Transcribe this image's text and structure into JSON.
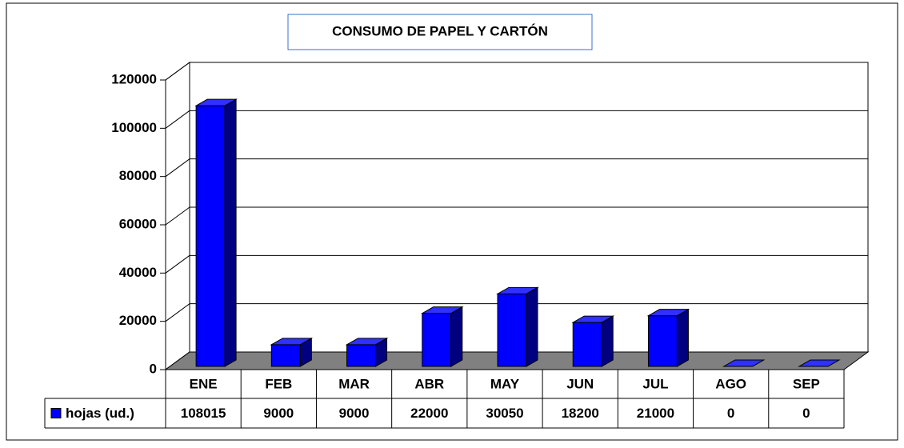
{
  "chart_data": {
    "type": "bar",
    "title": "CONSUMO DE PAPEL Y CARTÓN",
    "categories": [
      "ENE",
      "FEB",
      "MAR",
      "ABR",
      "MAY",
      "JUN",
      "JUL",
      "AGO",
      "SEP"
    ],
    "series": [
      {
        "name": "hojas (ud.)",
        "color": "#0000ff",
        "values": [
          108015,
          9000,
          9000,
          22000,
          30050,
          18200,
          21000,
          0,
          0
        ]
      }
    ],
    "ylim": [
      0,
      120000
    ],
    "yticks": [
      0,
      20000,
      40000,
      60000,
      80000,
      100000,
      120000
    ],
    "grid": true,
    "legend": "table"
  }
}
